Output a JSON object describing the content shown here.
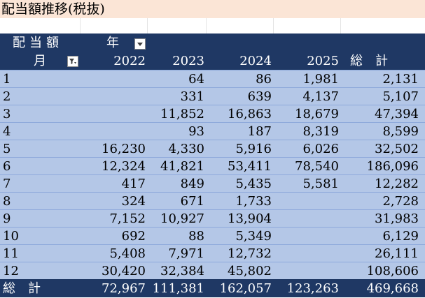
{
  "title": "配当額推移(税抜)",
  "pivot": {
    "corner_label": "配当額",
    "col_field_label": "年",
    "row_field_label": "月",
    "years": [
      "2022",
      "2023",
      "2024",
      "2025"
    ],
    "grand_total_col_label": "総　計",
    "grand_total_row_label": "総　計",
    "rows": [
      {
        "month": "1",
        "v2022": "",
        "v2023": "64",
        "v2024": "86",
        "v2025": "1,981",
        "total": "2,131"
      },
      {
        "month": "2",
        "v2022": "",
        "v2023": "331",
        "v2024": "639",
        "v2025": "4,137",
        "total": "5,107"
      },
      {
        "month": "3",
        "v2022": "",
        "v2023": "11,852",
        "v2024": "16,863",
        "v2025": "18,679",
        "total": "47,394"
      },
      {
        "month": "4",
        "v2022": "",
        "v2023": "93",
        "v2024": "187",
        "v2025": "8,319",
        "total": "8,599"
      },
      {
        "month": "5",
        "v2022": "16,230",
        "v2023": "4,330",
        "v2024": "5,916",
        "v2025": "6,026",
        "total": "32,502"
      },
      {
        "month": "6",
        "v2022": "12,324",
        "v2023": "41,821",
        "v2024": "53,411",
        "v2025": "78,540",
        "total": "186,096"
      },
      {
        "month": "7",
        "v2022": "417",
        "v2023": "849",
        "v2024": "5,435",
        "v2025": "5,581",
        "total": "12,282"
      },
      {
        "month": "8",
        "v2022": "324",
        "v2023": "671",
        "v2024": "1,733",
        "v2025": "",
        "total": "2,728"
      },
      {
        "month": "9",
        "v2022": "7,152",
        "v2023": "10,927",
        "v2024": "13,904",
        "v2025": "",
        "total": "31,983"
      },
      {
        "month": "10",
        "v2022": "692",
        "v2023": "88",
        "v2024": "5,349",
        "v2025": "",
        "total": "6,129"
      },
      {
        "month": "11",
        "v2022": "5,408",
        "v2023": "7,971",
        "v2024": "12,732",
        "v2025": "",
        "total": "26,111"
      },
      {
        "month": "12",
        "v2022": "30,420",
        "v2023": "32,384",
        "v2024": "45,802",
        "v2025": "",
        "total": "108,606"
      }
    ],
    "totals": {
      "v2022": "72,967",
      "v2023": "111,381",
      "v2024": "162,057",
      "v2025": "123,263",
      "total": "469,668"
    }
  },
  "colors": {
    "title_bg": "#fbe5d6",
    "header_bg": "#1f3864",
    "row_bg": "#b4c7e7"
  },
  "icons": {
    "col_filter": "dropdown-arrow-icon",
    "row_filter": "filter-applied-icon"
  }
}
